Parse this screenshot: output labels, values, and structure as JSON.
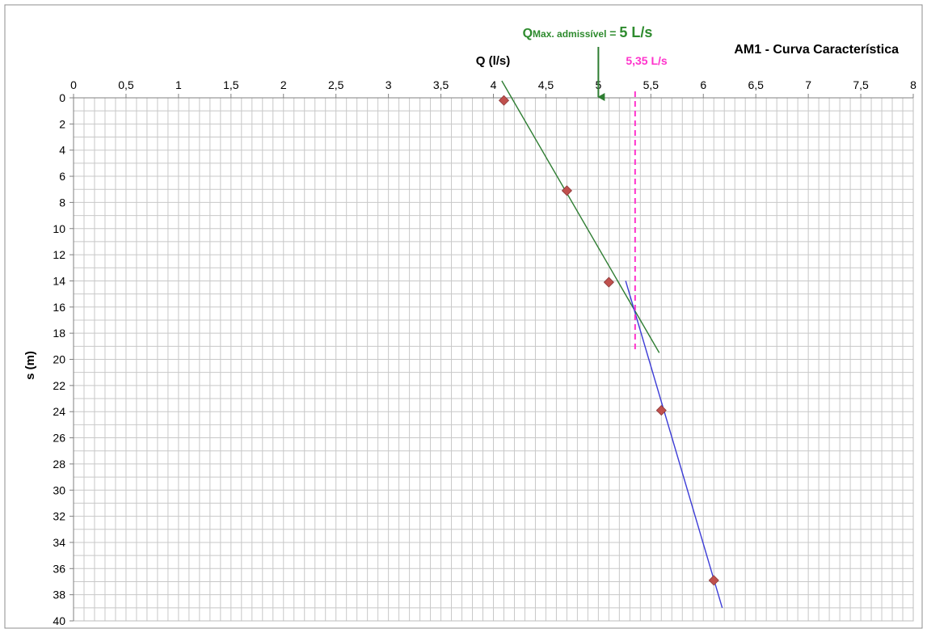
{
  "chart_data": {
    "type": "scatter",
    "title": "AM1 - Curva Característica",
    "xlabel": "Q (l/s)",
    "ylabel": "s (m)",
    "x_axis_position": "top",
    "y_axis_inverted": true,
    "xlim": [
      0,
      8
    ],
    "ylim": [
      0,
      40
    ],
    "x_major_ticks": [
      "0",
      "0,5",
      "1",
      "1,5",
      "2",
      "2,5",
      "3",
      "3,5",
      "4",
      "4,5",
      "5",
      "5,5",
      "6",
      "6,5",
      "7",
      "7,5",
      "8"
    ],
    "y_major_ticks": [
      "0",
      "2",
      "4",
      "6",
      "8",
      "10",
      "12",
      "14",
      "16",
      "18",
      "20",
      "22",
      "24",
      "26",
      "28",
      "30",
      "32",
      "34",
      "36",
      "38",
      "40"
    ],
    "grid": true,
    "series": [
      {
        "marker": "diamond",
        "color": "#c0504d",
        "points": [
          {
            "x": 4.1,
            "y": 0.2
          },
          {
            "x": 4.7,
            "y": 7.1
          },
          {
            "x": 5.1,
            "y": 14.1
          },
          {
            "x": 5.6,
            "y": 23.9
          },
          {
            "x": 6.1,
            "y": 36.9
          }
        ]
      }
    ],
    "trendlines": [
      {
        "color": "#2e7d32",
        "x": [
          4.08,
          5.58
        ],
        "y": [
          -1.3,
          19.5
        ]
      },
      {
        "color": "#3b3bd6",
        "x": [
          5.26,
          6.18
        ],
        "y": [
          14.0,
          39.0
        ]
      }
    ],
    "annotations": {
      "qmax": {
        "prefix": "Q",
        "subscript": "Max. admissível",
        "suffix": " = ",
        "value": "5 L/s",
        "color": "#2e8b2e",
        "arrow_x": 5.0
      },
      "intersection": {
        "label": "5,35 L/s",
        "x": 5.35,
        "color": "#ff33cc",
        "line_from_y": 0,
        "line_to_y": 19.5
      }
    }
  }
}
